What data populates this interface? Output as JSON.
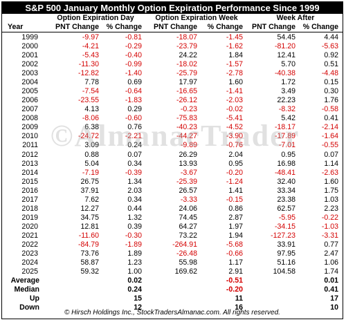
{
  "title": "S&P 500 January Monthly Option Expiration Performance Since 1999",
  "group_headers": [
    "Option Expiration Day",
    "Option Expiration Week",
    "Week After"
  ],
  "column_headers": [
    "Year",
    "PNT Change",
    "% Change",
    "PNT Change",
    "% Change",
    "PNT Change",
    "% Change"
  ],
  "rows": [
    [
      "1999",
      "-9.97",
      "-0.81",
      "-18.07",
      "-1.45",
      "54.45",
      "4.44"
    ],
    [
      "2000",
      "-4.21",
      "-0.29",
      "-23.79",
      "-1.62",
      "-81.20",
      "-5.63"
    ],
    [
      "2001",
      "-5.43",
      "-0.40",
      "24.22",
      "1.84",
      "12.41",
      "0.92"
    ],
    [
      "2002",
      "-11.30",
      "-0.99",
      "-18.02",
      "-1.57",
      "5.70",
      "0.51"
    ],
    [
      "2003",
      "-12.82",
      "-1.40",
      "-25.79",
      "-2.78",
      "-40.38",
      "-4.48"
    ],
    [
      "2004",
      "7.78",
      "0.69",
      "17.97",
      "1.60",
      "1.72",
      "0.15"
    ],
    [
      "2005",
      "-7.54",
      "-0.64",
      "-16.65",
      "-1.41",
      "3.49",
      "0.30"
    ],
    [
      "2006",
      "-23.55",
      "-1.83",
      "-26.12",
      "-2.03",
      "22.23",
      "1.76"
    ],
    [
      "2007",
      "4.13",
      "0.29",
      "-0.23",
      "-0.02",
      "-8.32",
      "-0.58"
    ],
    [
      "2008",
      "-8.06",
      "-0.60",
      "-75.83",
      "-5.41",
      "5.42",
      "0.41"
    ],
    [
      "2009",
      "6.38",
      "0.76",
      "-40.23",
      "-4.52",
      "-18.17",
      "-2.14"
    ],
    [
      "2010",
      "-24.72",
      "-2.21",
      "-44.27",
      "-3.90",
      "-17.89",
      "-1.64"
    ],
    [
      "2011",
      "3.09",
      "0.24",
      "-9.89",
      "-0.76",
      "-7.01",
      "-0.55"
    ],
    [
      "2012",
      "0.88",
      "0.07",
      "26.29",
      "2.04",
      "0.95",
      "0.07"
    ],
    [
      "2013",
      "5.04",
      "0.34",
      "13.93",
      "0.95",
      "16.98",
      "1.14"
    ],
    [
      "2014",
      "-7.19",
      "-0.39",
      "-3.67",
      "-0.20",
      "-48.41",
      "-2.63"
    ],
    [
      "2015",
      "26.75",
      "1.34",
      "-25.39",
      "-1.24",
      "32.40",
      "1.60"
    ],
    [
      "2016",
      "37.91",
      "2.03",
      "26.57",
      "1.41",
      "33.34",
      "1.75"
    ],
    [
      "2017",
      "7.62",
      "0.34",
      "-3.33",
      "-0.15",
      "23.38",
      "1.03"
    ],
    [
      "2018",
      "12.27",
      "0.44",
      "24.06",
      "0.86",
      "62.57",
      "2.23"
    ],
    [
      "2019",
      "34.75",
      "1.32",
      "74.45",
      "2.87",
      "-5.95",
      "-0.22"
    ],
    [
      "2020",
      "12.81",
      "0.39",
      "64.27",
      "1.97",
      "-34.15",
      "-1.03"
    ],
    [
      "2021",
      "-11.60",
      "-0.30",
      "73.22",
      "1.94",
      "-127.23",
      "-3.31"
    ],
    [
      "2022",
      "-84.79",
      "-1.89",
      "-264.91",
      "-5.68",
      "33.91",
      "0.77"
    ],
    [
      "2023",
      "73.76",
      "1.89",
      "-26.48",
      "-0.66",
      "97.95",
      "2.47"
    ],
    [
      "2024",
      "58.87",
      "1.23",
      "55.98",
      "1.17",
      "51.16",
      "1.06"
    ],
    [
      "2025",
      "59.32",
      "1.00",
      "169.62",
      "2.91",
      "104.58",
      "1.74"
    ]
  ],
  "summary": [
    {
      "label": "Average",
      "values": [
        "0.02",
        "-0.51",
        "0.01"
      ]
    },
    {
      "label": "Median",
      "values": [
        "0.24",
        "-0.20",
        "0.41"
      ]
    },
    {
      "label": "Up",
      "values": [
        "15",
        "11",
        "17"
      ]
    },
    {
      "label": "Down",
      "values": [
        "12",
        "16",
        "10"
      ]
    }
  ],
  "watermark": "©AlmanacTrader",
  "footer": "© Hirsch Holdings Inc., StockTradersAlmanac.com. All rights reserved.",
  "colors": {
    "negative": "#d40000",
    "positive": "#000000",
    "title_bg": "#000000",
    "title_fg": "#ffffff"
  }
}
